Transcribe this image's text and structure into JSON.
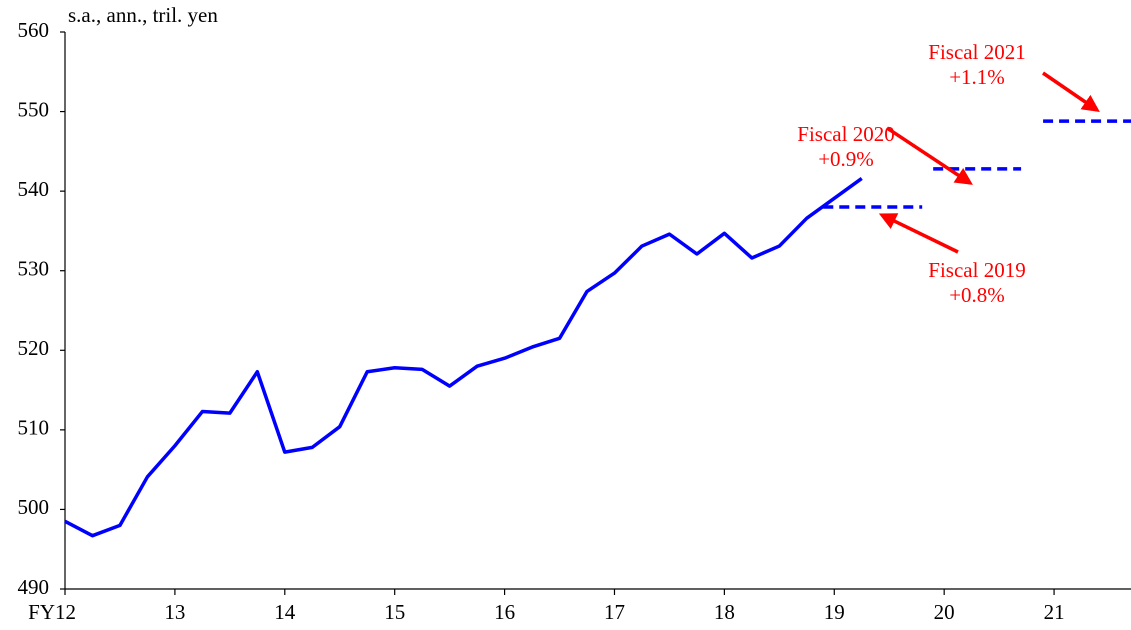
{
  "chart_data": {
    "type": "line",
    "ylabel": "s.a., ann., tril.  yen",
    "xlim": [
      12,
      21.7
    ],
    "ylim": [
      490,
      560
    ],
    "xticks": [
      {
        "value": 12,
        "label": "FY12"
      },
      13,
      14,
      15,
      16,
      17,
      18,
      19,
      20,
      21
    ],
    "yticks": [
      490,
      500,
      510,
      520,
      530,
      540,
      550,
      560
    ],
    "series": [
      {
        "color": "#0000ff",
        "style": "solid",
        "x": [
          12,
          12.25,
          12.5,
          12.75,
          13,
          13.25,
          13.5,
          13.75,
          14,
          14.25,
          14.5,
          14.75,
          15,
          15.25,
          15.5,
          15.75,
          16,
          16.25,
          16.5,
          16.75,
          17,
          17.25,
          17.5,
          17.75,
          18,
          18.25,
          18.5,
          18.75,
          19,
          19.25
        ],
        "values": [
          498.5,
          496.7,
          498.0,
          504.1,
          508.0,
          512.3,
          512.1,
          517.3,
          507.2,
          507.8,
          510.4,
          517.3,
          517.8,
          517.6,
          515.5,
          518.0,
          519.0,
          520.4,
          521.5,
          527.4,
          529.7,
          533.1,
          534.6,
          532.1,
          534.7,
          531.6,
          533.1,
          536.6,
          539.1,
          541.6
        ]
      },
      {
        "color": "#0000ff",
        "style": "dashed",
        "x": [
          18.9,
          19.8
        ],
        "values": [
          538.0,
          538.0
        ]
      },
      {
        "color": "#0000ff",
        "style": "dashed",
        "x": [
          19.9,
          20.7
        ],
        "values": [
          542.8,
          542.8
        ]
      },
      {
        "color": "#0000ff",
        "style": "dashed",
        "x": [
          20.9,
          21.7
        ],
        "values": [
          548.8,
          548.8
        ]
      }
    ],
    "annotations": [
      {
        "lines": [
          "Fiscal 2019",
          "+0.8%"
        ],
        "color": "#ff0000"
      },
      {
        "lines": [
          "Fiscal 2020",
          "+0.9%"
        ],
        "color": "#ff0000"
      },
      {
        "lines": [
          "Fiscal 2021",
          "+1.1%"
        ],
        "color": "#ff0000"
      }
    ]
  }
}
